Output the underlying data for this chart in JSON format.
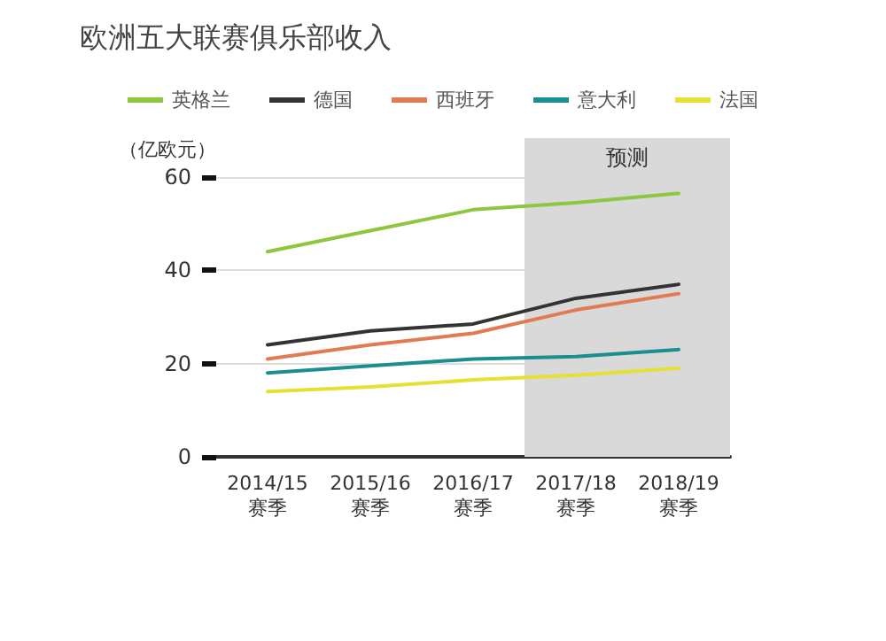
{
  "chart_data": {
    "type": "line",
    "title": "欧洲五大联赛俱乐部收入",
    "ylabel": "（亿欧元）",
    "categories": [
      "2014/15\n赛季",
      "2015/16\n赛季",
      "2016/17\n赛季",
      "2017/18\n赛季",
      "2018/19\n赛季"
    ],
    "series": [
      {
        "name": "英格兰",
        "color": "#8dc63f",
        "values": [
          44,
          48.5,
          53,
          54.5,
          56.5
        ]
      },
      {
        "name": "德国",
        "color": "#333333",
        "values": [
          24,
          27,
          28.5,
          34,
          37
        ]
      },
      {
        "name": "西班牙",
        "color": "#e07b54",
        "values": [
          21,
          24,
          26.5,
          31.5,
          35
        ]
      },
      {
        "name": "意大利",
        "color": "#1a8f8f",
        "values": [
          18,
          19.5,
          21,
          21.5,
          23
        ]
      },
      {
        "name": "法国",
        "color": "#e5e033",
        "values": [
          14,
          15,
          16.5,
          17.5,
          19
        ]
      }
    ],
    "ylim": [
      0,
      60
    ],
    "yticks": [
      0,
      20,
      40,
      60
    ],
    "grid": "y",
    "legend": "top",
    "marker": "none",
    "line_style": "solid",
    "bands": [
      {
        "axis": "x",
        "from": "2017/18\n赛季",
        "to": "2018/19\n赛季",
        "label": "预测",
        "color": "#d9d9d9"
      }
    ]
  }
}
